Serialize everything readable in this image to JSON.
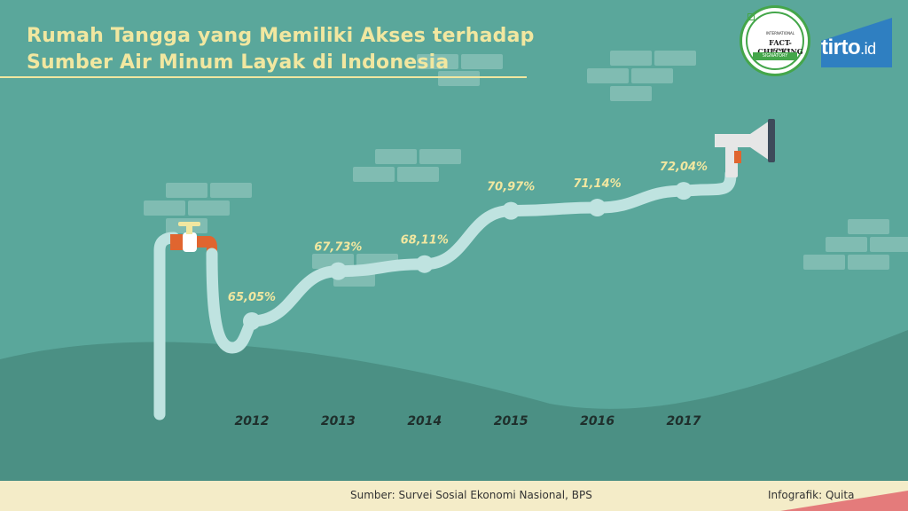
{
  "title": {
    "line1": "Rumah Tangga yang Memiliki Akses terhadap",
    "line2": "Sumber Air Minum Layak di Indonesia"
  },
  "badge": {
    "top_text": "INTERNATIONAL",
    "main_text": "FACT-CHECKING",
    "sub_text": "NETWORK",
    "ribbon_text": "SIGNATORY"
  },
  "logo": {
    "name": "tirto",
    "suffix": ".id"
  },
  "footer": {
    "source": "Sumber: Survei Sosial Ekonomi Nasional, BPS",
    "credit": "Infografik: Quita"
  },
  "colors": {
    "background": "#5aa79b",
    "ground": "#4b9084",
    "pipe": "#bfe3e0",
    "title": "#f1e7a0",
    "brick": "#80bcb2",
    "tap_orange": "#e0652f"
  },
  "chart_data": {
    "type": "line",
    "categories": [
      "2012",
      "2013",
      "2014",
      "2015",
      "2016",
      "2017"
    ],
    "values": [
      65.05,
      67.73,
      68.11,
      70.97,
      71.14,
      72.04
    ],
    "labels": [
      "65,05%",
      "67,73%",
      "68,11%",
      "70,97%",
      "71,14%",
      "72,04%"
    ],
    "unit": "%",
    "title": "Rumah Tangga yang Memiliki Akses terhadap Sumber Air Minum Layak di Indonesia",
    "xlabel": "",
    "ylabel": "",
    "ylim": [
      63,
      74
    ],
    "grid": false,
    "legend": "none"
  }
}
